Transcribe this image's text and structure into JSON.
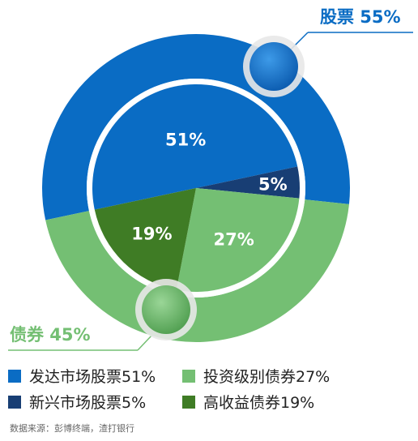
{
  "chart_data": {
    "type": "pie",
    "outer_ring": [
      {
        "name": "股票",
        "value": 55,
        "label": "股票 55%",
        "color": "#0a6cc4"
      },
      {
        "name": "债券",
        "value": 45,
        "label": "债券 45%",
        "color": "#74bf73"
      }
    ],
    "inner_pie": [
      {
        "name": "发达市场股票",
        "value": 51,
        "label": "51%",
        "color": "#0a6cc4"
      },
      {
        "name": "新兴市场股票",
        "value": 5,
        "label": "5%",
        "color": "#183e74"
      },
      {
        "name": "投资级别债券",
        "value": 27,
        "label": "27%",
        "color": "#74bf73"
      },
      {
        "name": "高收益债券",
        "value": 19,
        "label": "19%",
        "color": "#3f7c25"
      }
    ],
    "legend": [
      {
        "label": "发达市场股票51%",
        "color": "#0a6cc4"
      },
      {
        "label": "投资级别债券27%",
        "color": "#74bf73"
      },
      {
        "label": "新兴市场股票5%",
        "color": "#183e74"
      },
      {
        "label": "高收益债券19%",
        "color": "#3f7c25"
      }
    ],
    "source": "数据来源：彭博终端，渣打银行"
  }
}
